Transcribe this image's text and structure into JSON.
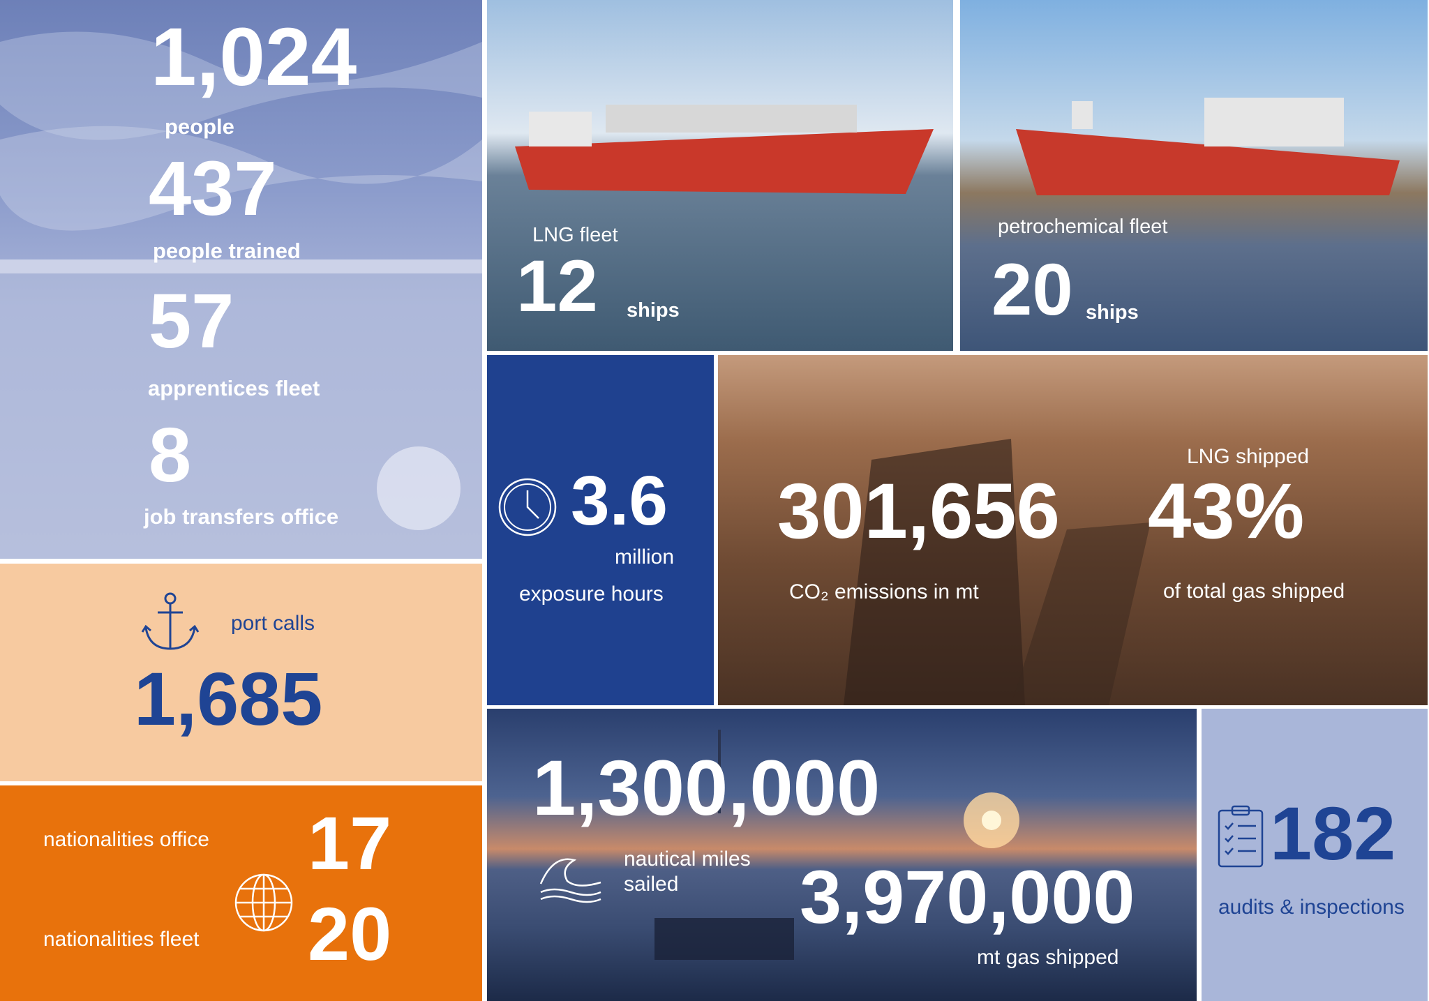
{
  "crew": {
    "people": {
      "value": "1,024",
      "label": "people"
    },
    "trained": {
      "value": "437",
      "label": "people trained"
    },
    "apprentices": {
      "value": "57",
      "label": "apprentices fleet"
    },
    "transfers": {
      "value": "8",
      "label": "job transfers office"
    }
  },
  "lng_fleet": {
    "label": "LNG fleet",
    "value": "12",
    "unit": "ships"
  },
  "petrochemical_fleet": {
    "label": "petrochemical fleet",
    "value": "20",
    "unit": "ships"
  },
  "exposure": {
    "value": "3.6",
    "unit": "million",
    "label": "exposure hours"
  },
  "emissions": {
    "value": "301,656",
    "label": "CO₂ emissions in mt"
  },
  "lng_shipped": {
    "title": "LNG shipped",
    "value": "43%",
    "label": "of total gas shipped"
  },
  "port_calls": {
    "label": "port calls",
    "value": "1,685"
  },
  "nationalities": {
    "office": {
      "label": "nationalities office",
      "value": "17"
    },
    "fleet": {
      "label": "nationalities fleet",
      "value": "20"
    }
  },
  "nautical": {
    "value": "1,300,000",
    "label": [
      "nautical miles",
      "sailed"
    ]
  },
  "gas_shipped": {
    "value": "3,970,000",
    "label": "mt gas shipped"
  },
  "audits": {
    "value": "182",
    "label": "audits & inspections"
  }
}
